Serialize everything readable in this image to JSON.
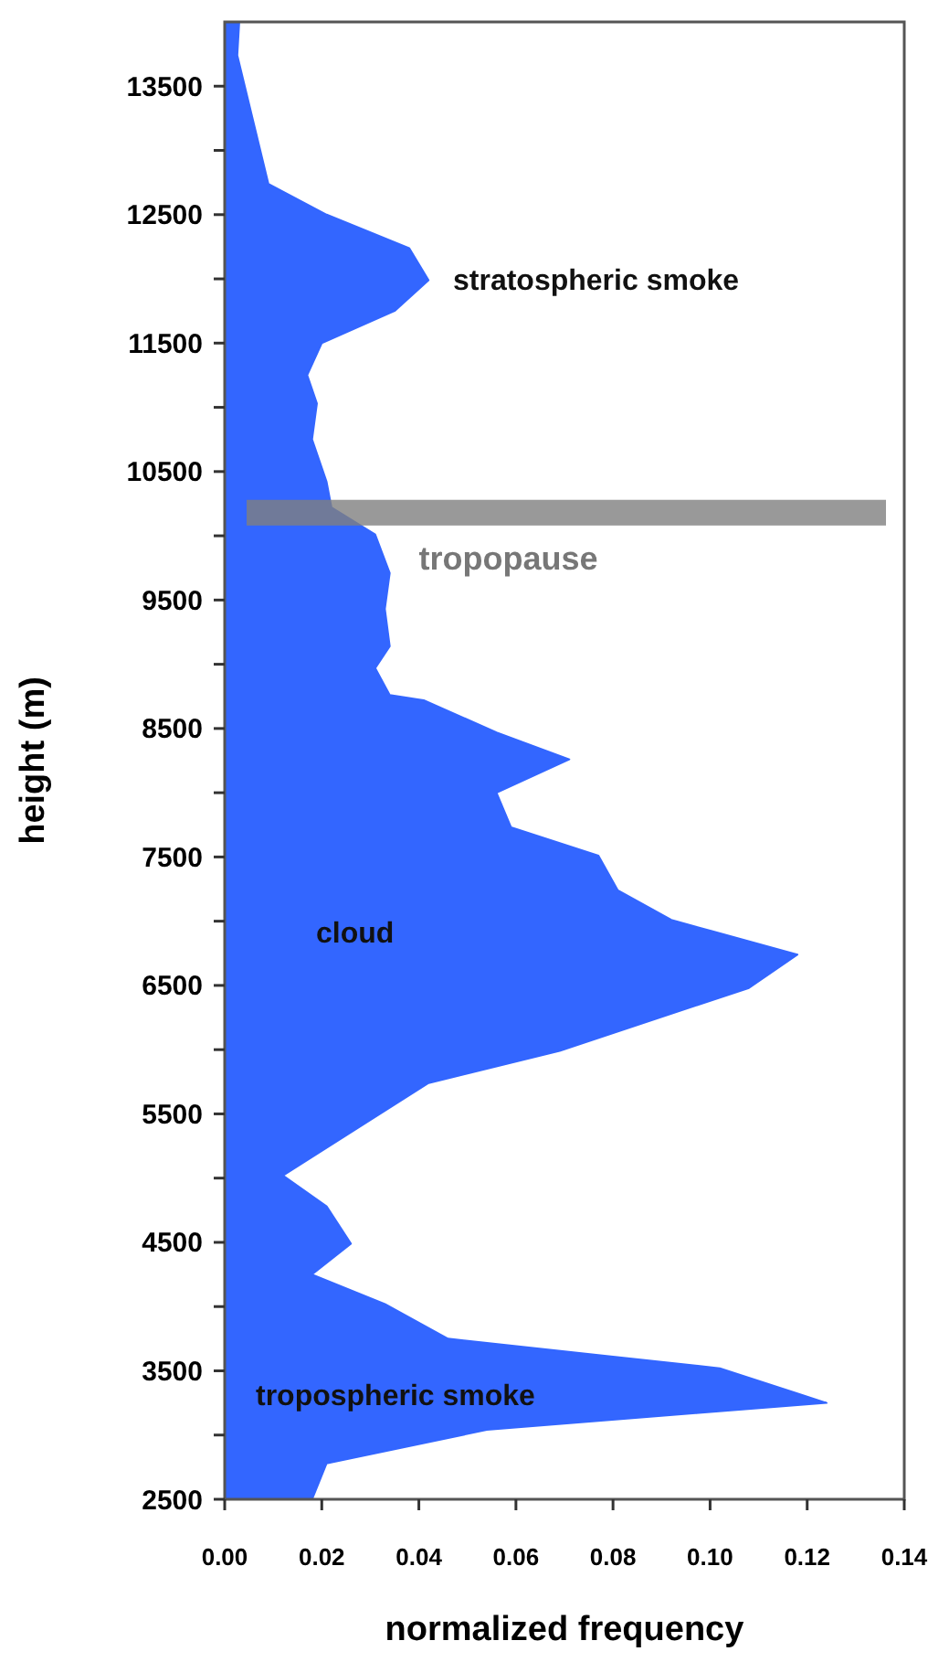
{
  "chart_data": {
    "type": "area",
    "orientation": "horizontal",
    "xlabel": "normalized frequency",
    "ylabel": "height (m)",
    "x": [
      14000,
      13740,
      12740,
      12500,
      12240,
      11990,
      11750,
      11500,
      11250,
      11030,
      10750,
      10420,
      10220,
      10010,
      9710,
      9430,
      9140,
      8970,
      8760,
      8720,
      8470,
      8260,
      8000,
      7730,
      7510,
      7240,
      7010,
      6740,
      6480,
      5990,
      5740,
      5020,
      4780,
      4490,
      4250,
      4020,
      3750,
      3610,
      3520,
      3250,
      3170,
      3040,
      2780,
      2500
    ],
    "series": [
      {
        "color": "#3366ff",
        "values": [
          0.003,
          0.0026,
          0.009,
          0.021,
          0.038,
          0.042,
          0.035,
          0.02,
          0.017,
          0.019,
          0.018,
          0.021,
          0.022,
          0.031,
          0.034,
          0.033,
          0.034,
          0.031,
          0.034,
          0.041,
          0.056,
          0.071,
          0.056,
          0.059,
          0.077,
          0.081,
          0.092,
          0.118,
          0.108,
          0.069,
          0.042,
          0.012,
          0.021,
          0.026,
          0.018,
          0.033,
          0.046,
          0.08,
          0.102,
          0.124,
          0.097,
          0.054,
          0.021,
          0.018
        ]
      }
    ],
    "xlim": [
      0,
      0.14
    ],
    "xticks": [
      {
        "value": 0,
        "label": "0.00"
      },
      {
        "value": 0.02,
        "label": "0.02"
      },
      {
        "value": 0.04,
        "label": "0.04"
      },
      {
        "value": 0.06,
        "label": "0.06"
      },
      {
        "value": 0.08,
        "label": "0.08"
      },
      {
        "value": 0.1,
        "label": "0.10"
      },
      {
        "value": 0.12,
        "label": "0.12"
      },
      {
        "value": 0.14,
        "label": "0.14"
      }
    ],
    "ylim": [
      2500,
      14000
    ],
    "yticks": [
      2500,
      {
        "value": 3000,
        "label": null
      },
      3500,
      {
        "value": 4000,
        "label": null
      },
      4500,
      {
        "value": 5000,
        "label": null
      },
      5500,
      {
        "value": 6000,
        "label": null
      },
      6500,
      {
        "value": 7000,
        "label": null
      },
      7500,
      {
        "value": 8000,
        "label": null
      },
      8500,
      {
        "value": 9000,
        "label": null
      },
      9500,
      {
        "value": 10000,
        "label": null
      },
      10500,
      {
        "value": 11000,
        "label": null
      },
      11500,
      {
        "value": 12000,
        "label": null
      },
      12500,
      {
        "value": 13000,
        "label": null
      },
      13500
    ],
    "bands": [
      {
        "axis": "y",
        "from": 10080,
        "to": 10280,
        "label": "tropopause",
        "color": "#808080"
      }
    ],
    "annotations": [
      "stratospheric smoke",
      "cloud",
      "tropospheric smoke"
    ],
    "grid": false
  }
}
